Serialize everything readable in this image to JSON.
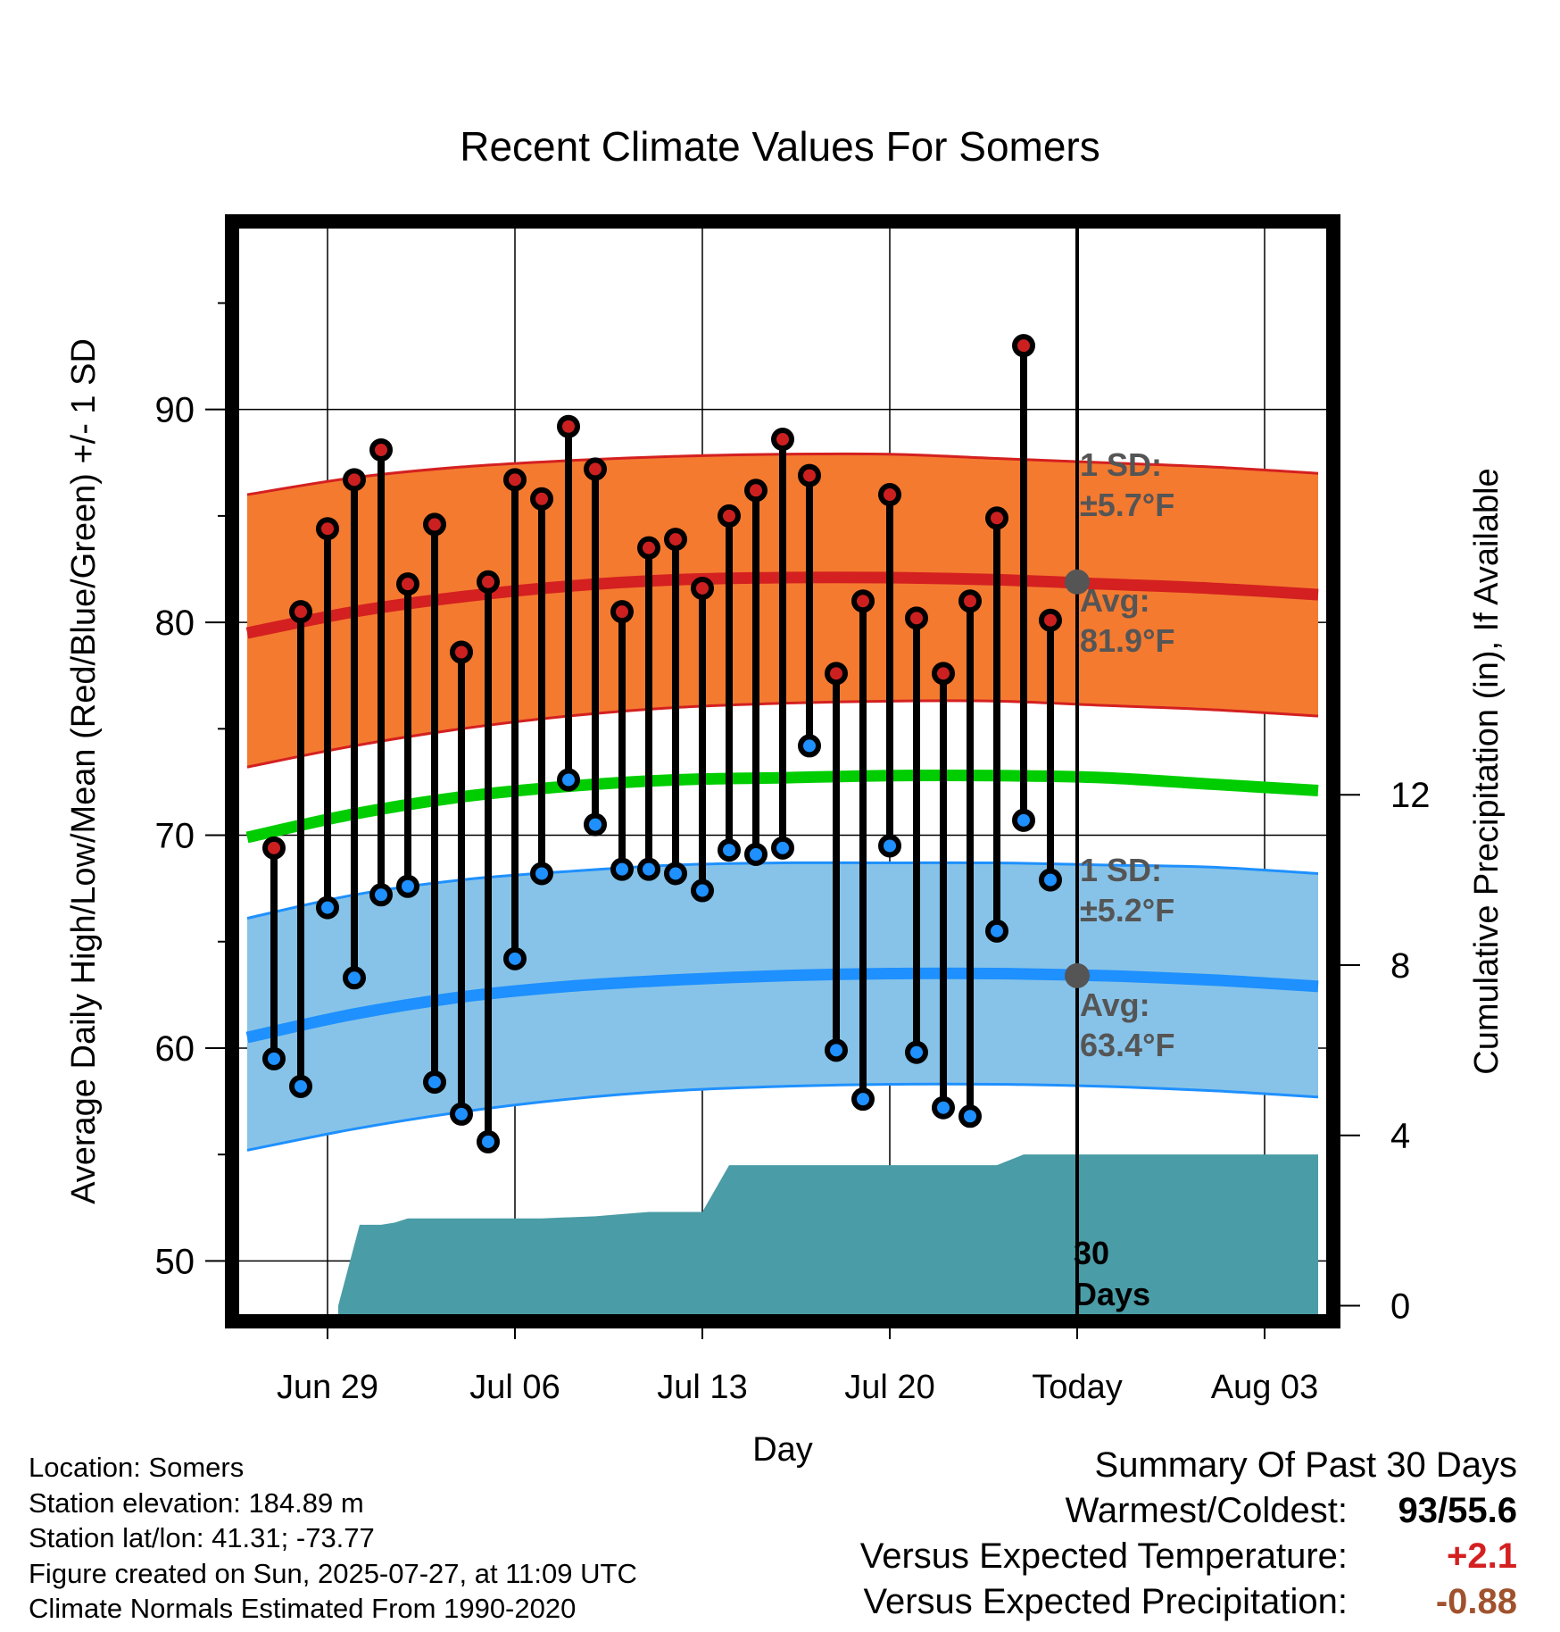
{
  "chart_data": {
    "type": "line",
    "title": "Recent Climate Values For Somers",
    "xlabel": "Day",
    "ylabel": "Average Daily High/Low/Mean (Red/Blue/Green) +/- 1 SD",
    "y2label": "Cumulative Precipitation (in), If Available",
    "x_ticks": [
      {
        "day": 3,
        "label": "Jun 29"
      },
      {
        "day": 10,
        "label": "Jul 06"
      },
      {
        "day": 17,
        "label": "Jul 13"
      },
      {
        "day": 24,
        "label": "Jul 20"
      },
      {
        "day": 31,
        "label": "Today"
      },
      {
        "day": 38,
        "label": "Aug 03"
      }
    ],
    "xlim": [
      -0.3,
      40.3
    ],
    "ylim": [
      47.5,
      98.5
    ],
    "y_ticks": [
      50,
      60,
      70,
      80,
      90
    ],
    "y2lim": [
      -0.2,
      25.3
    ],
    "y2_ticks": [
      0,
      4,
      8,
      12
    ],
    "grid": true,
    "days": [
      1,
      2,
      3,
      4,
      5,
      6,
      7,
      8,
      9,
      10,
      11,
      12,
      13,
      14,
      15,
      16,
      17,
      18,
      19,
      20,
      21,
      22,
      23,
      24,
      25,
      26,
      27,
      28,
      29,
      30
    ],
    "highs": [
      69.4,
      80.5,
      84.4,
      86.7,
      88.1,
      81.8,
      84.6,
      78.6,
      81.9,
      86.7,
      85.8,
      89.2,
      87.2,
      80.5,
      83.5,
      83.9,
      81.6,
      85.0,
      86.2,
      88.6,
      86.9,
      77.6,
      81.0,
      86.0,
      80.2,
      77.6,
      81.0,
      84.9,
      93.0,
      80.1
    ],
    "lows": [
      59.5,
      58.2,
      66.6,
      63.3,
      67.2,
      67.6,
      58.4,
      56.9,
      55.6,
      64.2,
      68.2,
      72.6,
      70.5,
      68.4,
      68.4,
      68.2,
      67.4,
      69.3,
      69.1,
      69.4,
      74.2,
      59.9,
      57.6,
      69.5,
      59.8,
      57.2,
      56.8,
      65.5,
      70.7,
      67.9
    ],
    "normals": {
      "x": [
        0,
        4,
        8,
        12,
        16,
        20,
        24,
        28,
        32,
        36,
        40
      ],
      "high_avg": [
        79.5,
        80.5,
        81.2,
        81.7,
        82.0,
        82.1,
        82.1,
        82.0,
        81.8,
        81.6,
        81.3
      ],
      "high_upper": [
        86.0,
        86.8,
        87.3,
        87.6,
        87.8,
        87.9,
        87.9,
        87.7,
        87.5,
        87.3,
        87.0
      ],
      "high_lower": [
        73.2,
        74.2,
        75.0,
        75.6,
        76.0,
        76.2,
        76.3,
        76.3,
        76.1,
        75.9,
        75.6
      ],
      "mean_avg": [
        69.9,
        71.0,
        71.8,
        72.3,
        72.6,
        72.7,
        72.8,
        72.8,
        72.7,
        72.4,
        72.1
      ],
      "low_avg": [
        60.5,
        61.6,
        62.4,
        62.9,
        63.2,
        63.4,
        63.5,
        63.5,
        63.4,
        63.2,
        62.9
      ],
      "low_upper": [
        66.1,
        67.2,
        67.9,
        68.3,
        68.6,
        68.7,
        68.7,
        68.7,
        68.6,
        68.5,
        68.2
      ],
      "low_lower": [
        55.2,
        56.2,
        57.0,
        57.6,
        58.0,
        58.2,
        58.3,
        58.3,
        58.2,
        58.0,
        57.7
      ]
    },
    "precip": {
      "x": [
        3.4,
        4.2,
        5.0,
        5.5,
        6.0,
        7.0,
        9.0,
        11.0,
        13.0,
        14.0,
        15.0,
        16.0,
        17.0,
        18.0,
        19.0,
        24.0,
        28.0,
        29.0,
        30.0,
        32.0,
        36.0,
        40.0
      ],
      "y": [
        0.0,
        1.9,
        1.9,
        1.95,
        2.05,
        2.05,
        2.05,
        2.05,
        2.1,
        2.15,
        2.2,
        2.2,
        2.2,
        3.3,
        3.3,
        3.3,
        3.3,
        3.55,
        3.55,
        3.55,
        3.55,
        3.55
      ]
    },
    "today": {
      "day": 31,
      "high_avg": 81.9,
      "low_avg": 63.4
    },
    "annotations": {
      "high_sd_label": "1 SD:",
      "high_sd_value": "±5.7°F",
      "high_avg_label": "Avg:",
      "high_avg_value": "81.9°F",
      "low_sd_label": "1 SD:",
      "low_sd_value": "±5.2°F",
      "low_avg_label": "Avg:",
      "low_avg_value": "63.4°F",
      "window_line1": "30",
      "window_line2": "Days"
    },
    "colors": {
      "high_band": "#f47a30",
      "high_band_edge": "#d42020",
      "high_avg_line": "#d42020",
      "low_band": "#87c3e8",
      "low_band_edge": "#1e90ff",
      "low_avg_line": "#1e90ff",
      "mean_line": "#00cd00",
      "precip_fill": "#4a9ca6",
      "high_marker": "#cc2020",
      "low_marker": "#1e90ff",
      "annotation": "#555555"
    }
  },
  "info": {
    "location": "Location: Somers",
    "elevation": "Station elevation: 184.89 m",
    "latlon": "Station lat/lon: 41.31; -73.77",
    "created": "Figure created on Sun, 2025-07-27, at 11:09 UTC",
    "normals": "Climate Normals Estimated From 1990-2020"
  },
  "summary": {
    "title": "Summary Of Past 30 Days",
    "warmest_label": "Warmest/Coldest:",
    "warmest_value": "93/55.6",
    "temp_label": "Versus Expected Temperature:",
    "temp_value": "+2.1",
    "temp_color": "#d42020",
    "precip_label": "Versus Expected Precipitation:",
    "precip_value": "-0.88",
    "precip_color": "#a0522d"
  }
}
